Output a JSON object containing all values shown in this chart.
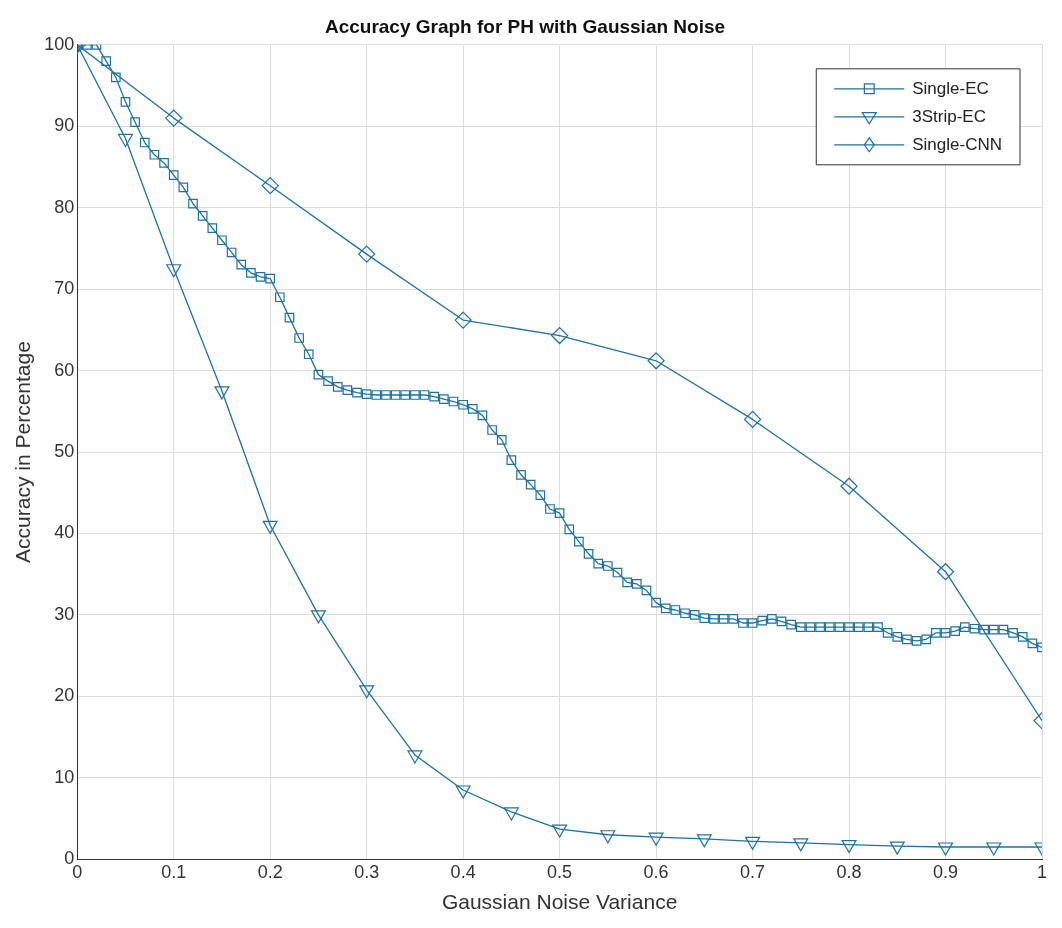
{
  "chart_data": {
    "type": "line",
    "title": "Accuracy Graph for PH with Gaussian Noise",
    "xlabel": "Gaussian Noise Variance",
    "ylabel": "Accuracy in Percentage",
    "xlim": [
      0,
      1
    ],
    "xticks": [
      0,
      0.1,
      0.2,
      0.3,
      0.4,
      0.5,
      0.6,
      0.7,
      0.8,
      0.9,
      1
    ],
    "ylim": [
      0,
      100
    ],
    "yticks": [
      0,
      10,
      20,
      30,
      40,
      50,
      60,
      70,
      80,
      90,
      100
    ],
    "grid": true,
    "legend": "top right",
    "line_style": "solid",
    "series": [
      {
        "name": "Single-EC",
        "color": "#1f72a0",
        "marker": "square",
        "x": [
          0,
          0.01,
          0.02,
          0.03,
          0.04,
          0.05,
          0.06,
          0.07,
          0.08,
          0.09,
          0.1,
          0.11,
          0.12,
          0.13,
          0.14,
          0.15,
          0.16,
          0.17,
          0.18,
          0.19,
          0.2,
          0.21,
          0.22,
          0.23,
          0.24,
          0.25,
          0.26,
          0.27,
          0.28,
          0.29,
          0.3,
          0.31,
          0.32,
          0.33,
          0.34,
          0.35,
          0.36,
          0.37,
          0.38,
          0.39,
          0.4,
          0.41,
          0.42,
          0.43,
          0.44,
          0.45,
          0.46,
          0.47,
          0.48,
          0.49,
          0.5,
          0.51,
          0.52,
          0.53,
          0.54,
          0.55,
          0.56,
          0.57,
          0.58,
          0.59,
          0.6,
          0.61,
          0.62,
          0.63,
          0.64,
          0.65,
          0.66,
          0.67,
          0.68,
          0.69,
          0.7,
          0.71,
          0.72,
          0.73,
          0.74,
          0.75,
          0.76,
          0.77,
          0.78,
          0.79,
          0.8,
          0.81,
          0.82,
          0.83,
          0.84,
          0.85,
          0.86,
          0.87,
          0.88,
          0.89,
          0.9,
          0.91,
          0.92,
          0.93,
          0.94,
          0.95,
          0.96,
          0.97,
          0.98,
          0.99,
          1
        ],
        "values": [
          100,
          100,
          100,
          98,
          96,
          93,
          90.5,
          88,
          86.5,
          85.5,
          84,
          82.5,
          80.5,
          79,
          77.5,
          76,
          74.5,
          73,
          72,
          71.5,
          71.3,
          69,
          66.5,
          64,
          62,
          59.5,
          58.7,
          58,
          57.6,
          57.3,
          57.1,
          57,
          57,
          57,
          57,
          57,
          57,
          56.8,
          56.5,
          56.2,
          55.8,
          55.3,
          54.5,
          52.7,
          51.5,
          49,
          47.2,
          46,
          44.7,
          43,
          42.5,
          40.5,
          39,
          37.5,
          36.3,
          36,
          35.2,
          34,
          33.8,
          33,
          31.5,
          30.8,
          30.6,
          30.2,
          30,
          29.6,
          29.5,
          29.5,
          29.5,
          29,
          29,
          29.3,
          29.5,
          29.2,
          28.8,
          28.5,
          28.5,
          28.5,
          28.5,
          28.5,
          28.5,
          28.5,
          28.5,
          28.5,
          27.8,
          27.3,
          27,
          26.8,
          27,
          27.8,
          27.8,
          28,
          28.5,
          28.3,
          28.2,
          28.2,
          28.2,
          27.8,
          27.3,
          26.5,
          26
        ]
      },
      {
        "name": "3Strip-EC",
        "color": "#1f72a0",
        "marker": "triangle",
        "x": [
          0,
          0.05,
          0.1,
          0.15,
          0.2,
          0.25,
          0.3,
          0.35,
          0.4,
          0.45,
          0.5,
          0.55,
          0.6,
          0.65,
          0.7,
          0.75,
          0.8,
          0.85,
          0.9,
          0.95,
          1
        ],
        "values": [
          100,
          88.5,
          72.5,
          57.5,
          41,
          30,
          20.8,
          12.8,
          8.5,
          5.8,
          3.7,
          3,
          2.7,
          2.5,
          2.2,
          2,
          1.8,
          1.6,
          1.5,
          1.5,
          1.5
        ]
      },
      {
        "name": "Single-CNN",
        "color": "#1f72a0",
        "marker": "diamond",
        "x": [
          0,
          0.1,
          0.2,
          0.3,
          0.4,
          0.5,
          0.6,
          0.7,
          0.8,
          0.9,
          1
        ],
        "values": [
          100,
          91,
          82.7,
          74.3,
          66.2,
          64.3,
          61.2,
          54,
          45.8,
          35.3,
          17
        ]
      }
    ]
  }
}
